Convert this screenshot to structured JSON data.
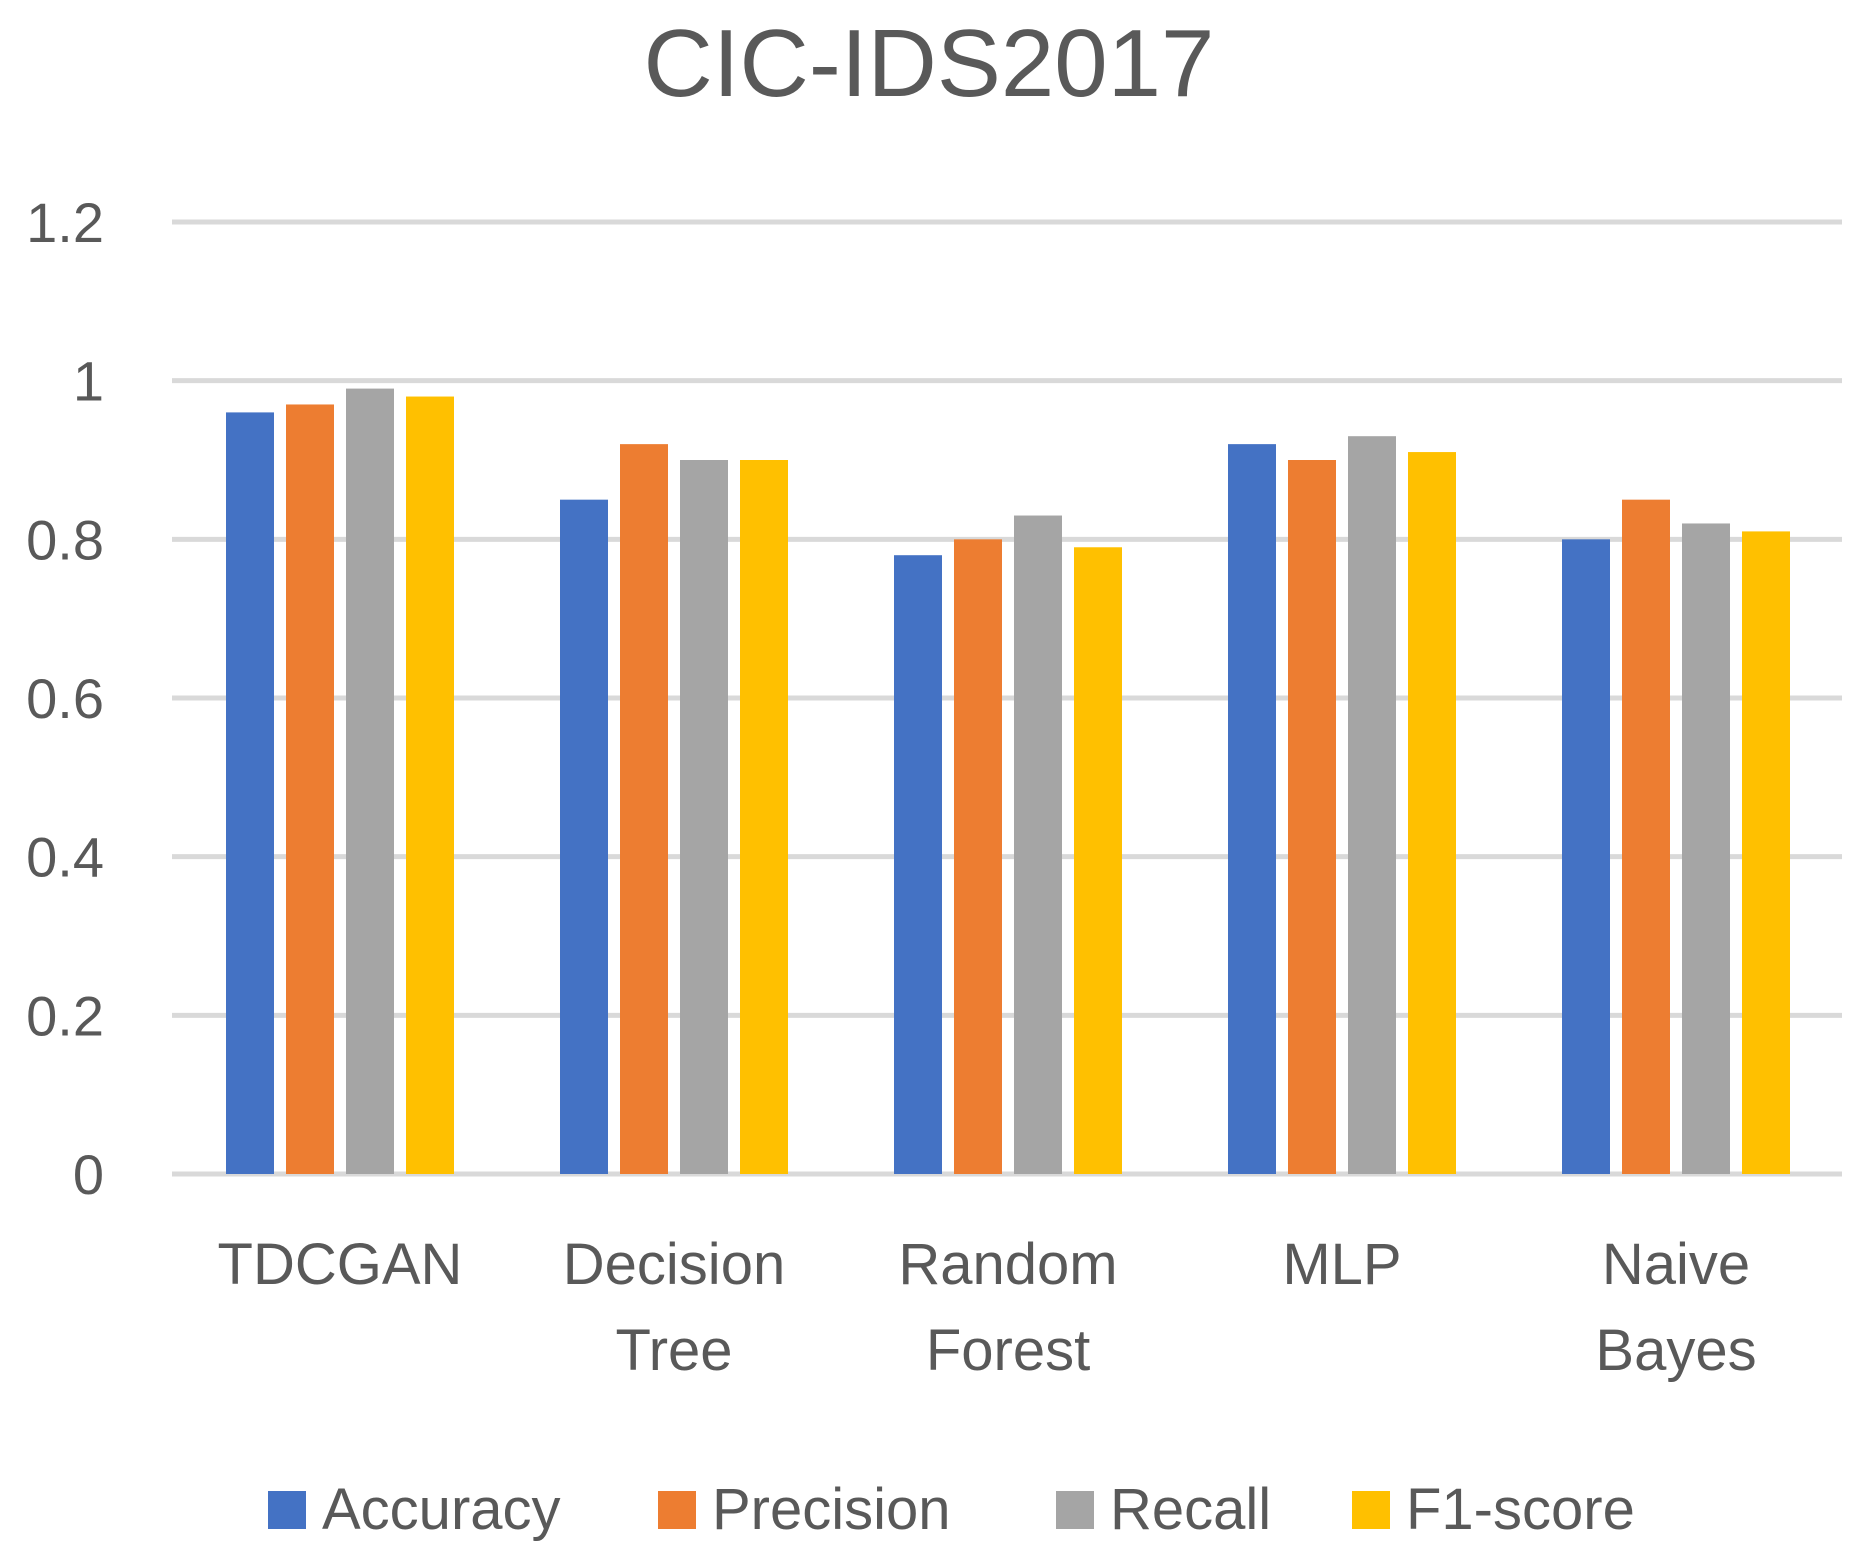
{
  "chart_data": {
    "type": "bar",
    "title": "CIC-IDS2017",
    "xlabel": "",
    "ylabel": "",
    "ylim": [
      0,
      1.2
    ],
    "yticks": [
      "0",
      "0.2",
      "0.4",
      "0.6",
      "0.8",
      "1",
      "1.2"
    ],
    "grid": true,
    "legend_position": "bottom",
    "categories": [
      [
        "TDCGAN"
      ],
      [
        "Decision",
        "Tree"
      ],
      [
        "Random",
        "Forest"
      ],
      [
        "MLP"
      ],
      [
        "Naive",
        "Bayes"
      ]
    ],
    "series": [
      {
        "name": "Accuracy",
        "color": "#4472c4",
        "values": [
          0.96,
          0.85,
          0.78,
          0.92,
          0.8
        ]
      },
      {
        "name": "Precision",
        "color": "#ed7d31",
        "values": [
          0.97,
          0.92,
          0.8,
          0.9,
          0.85
        ]
      },
      {
        "name": "Recall",
        "color": "#a5a5a5",
        "values": [
          0.99,
          0.9,
          0.83,
          0.93,
          0.82
        ]
      },
      {
        "name": "F1-score",
        "color": "#ffc000",
        "values": [
          0.98,
          0.9,
          0.79,
          0.91,
          0.81
        ]
      }
    ]
  }
}
